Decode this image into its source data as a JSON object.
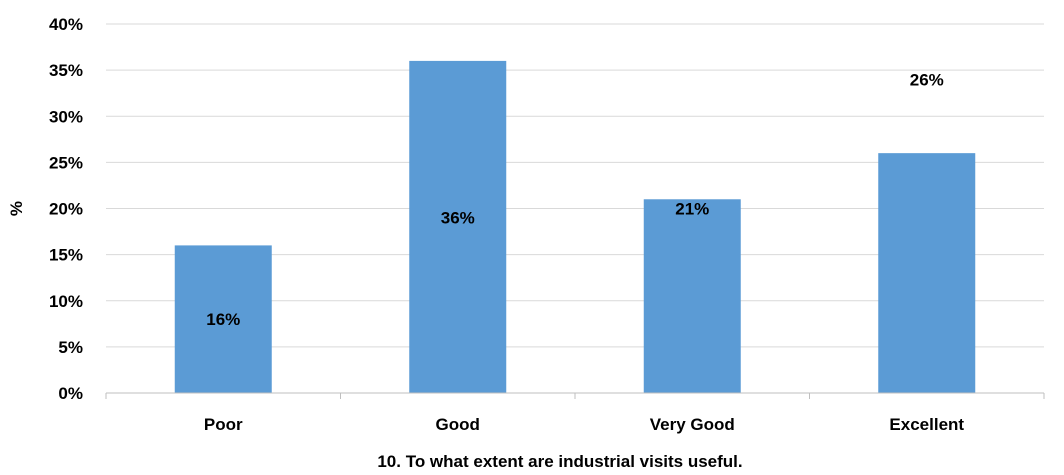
{
  "chart_data": {
    "type": "bar",
    "title": "",
    "xlabel": "10. To what extent are industrial visits useful.",
    "ylabel": "%",
    "categories": [
      "Poor",
      "Good",
      "Very Good",
      "Excellent"
    ],
    "series": [
      {
        "values": [
          16,
          36,
          21,
          26
        ],
        "data_labels": [
          "16%",
          "36%",
          "21%",
          "26%"
        ],
        "color": "#5B9BD5"
      }
    ],
    "ylim": [
      0,
      40
    ],
    "yticks": [
      0,
      5,
      10,
      15,
      20,
      25,
      30,
      35,
      40
    ],
    "ytick_labels": [
      "0%",
      "5%",
      "10%",
      "15%",
      "20%",
      "25%",
      "30%",
      "35%",
      "40%"
    ],
    "label_positions": [
      8,
      19,
      20,
      34
    ],
    "grid": true,
    "legend": "none"
  },
  "colors": {
    "bar": "#5B9BD5",
    "grid": "#D9D9D9",
    "axis": "#BFBFBF",
    "text": "#000000"
  }
}
